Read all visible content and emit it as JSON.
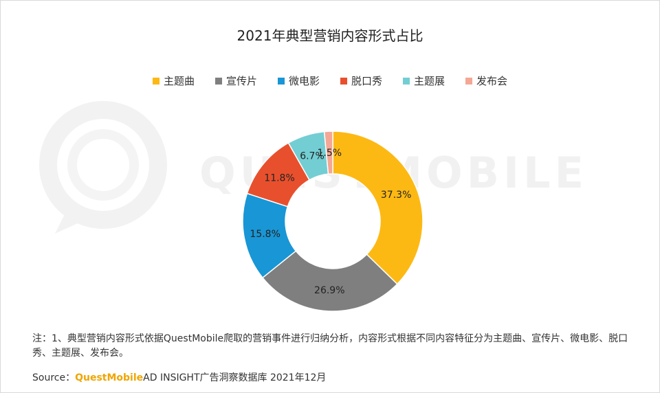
{
  "title": "2021年典型营销内容形式占比",
  "watermark": {
    "logo_text": "QUESTMOBILE"
  },
  "chart_data": {
    "type": "pie",
    "subtype": "donut",
    "categories": [
      "主题曲",
      "宣传片",
      "微电影",
      "脱口秀",
      "主题展",
      "发布会"
    ],
    "values": [
      37.3,
      26.9,
      15.8,
      11.8,
      6.7,
      1.5
    ],
    "labels": [
      "37.3%",
      "26.9%",
      "15.8%",
      "11.8%",
      "6.7%",
      "1.5%"
    ],
    "colors": [
      "#FDB913",
      "#7F7F7F",
      "#1996D5",
      "#E8502D",
      "#73CED3",
      "#F4A795"
    ],
    "legend_position": "top"
  },
  "note": "注：1、典型营销内容形式依据QuestMobile爬取的营销事件进行归纳分析，内容形式根据不同内容特征分为主题曲、宣传片、微电影、脱口秀、主题展、发布会。",
  "source": {
    "label": "Source：",
    "brand": "QuestMobile",
    "text": "AD INSIGHT广告洞察数据库 2021年12月"
  }
}
